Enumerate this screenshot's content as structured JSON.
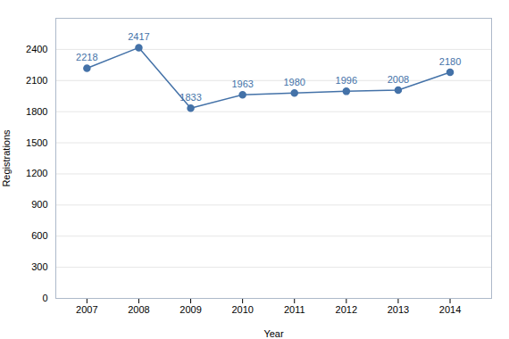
{
  "chart_data": {
    "type": "line",
    "x": [
      2007,
      2008,
      2009,
      2010,
      2011,
      2012,
      2013,
      2014
    ],
    "values": [
      2218,
      2417,
      1833,
      1963,
      1980,
      1996,
      2008,
      2180
    ],
    "color": "#4472A8",
    "marker": "circle",
    "xlabel": "Year",
    "ylabel": "Registrations",
    "xlim": [
      2006.4,
      2014.8
    ],
    "xticks": [
      2007,
      2008,
      2009,
      2010,
      2011,
      2012,
      2013,
      2014
    ],
    "ylim": [
      0,
      2700
    ],
    "yticks": [
      0,
      300,
      600,
      900,
      1200,
      1500,
      1800,
      2100,
      2400
    ],
    "grid": true,
    "data_labels": true
  }
}
